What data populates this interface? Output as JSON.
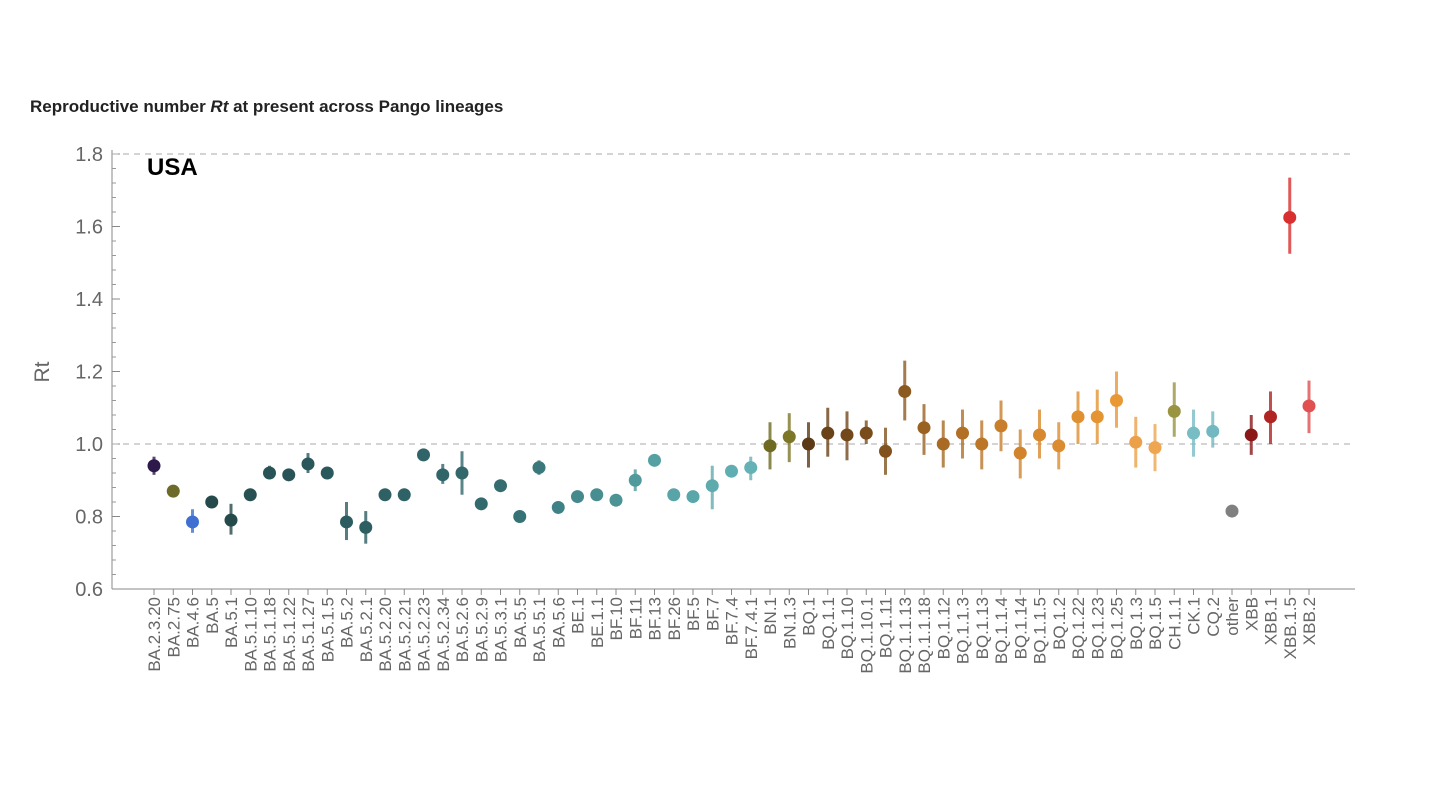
{
  "title_prefix": "Reproductive number ",
  "title_em": "Rt",
  "title_suffix": " at present across Pango lineages",
  "chart_data": {
    "type": "scatter",
    "annotation": "USA",
    "ylabel": "Rt",
    "xlabel": "",
    "ylim": [
      0.6,
      1.8
    ],
    "yticks": [
      "0.6",
      "0.8",
      "1.0",
      "1.2",
      "1.4",
      "1.6",
      "1.8"
    ],
    "reference_line": 1.0,
    "grid": false,
    "legend": "none",
    "points": [
      {
        "label": "BA.2.3.20",
        "rt": 0.94,
        "lo": 0.915,
        "hi": 0.965,
        "color": "#2d1a4a"
      },
      {
        "label": "BA.2.75",
        "rt": 0.87,
        "lo": 0.855,
        "hi": 0.885,
        "color": "#6e6a2a"
      },
      {
        "label": "BA.4.6",
        "rt": 0.785,
        "lo": 0.755,
        "hi": 0.82,
        "color": "#3f6fd0"
      },
      {
        "label": "BA.5",
        "rt": 0.84,
        "lo": 0.83,
        "hi": 0.85,
        "color": "#244a4c"
      },
      {
        "label": "BA.5.1",
        "rt": 0.79,
        "lo": 0.75,
        "hi": 0.835,
        "color": "#244a4c"
      },
      {
        "label": "BA.5.1.10",
        "rt": 0.86,
        "lo": 0.85,
        "hi": 0.87,
        "color": "#285154"
      },
      {
        "label": "BA.5.1.18",
        "rt": 0.92,
        "lo": 0.905,
        "hi": 0.94,
        "color": "#285458"
      },
      {
        "label": "BA.5.1.22",
        "rt": 0.915,
        "lo": 0.9,
        "hi": 0.93,
        "color": "#285458"
      },
      {
        "label": "BA.5.1.27",
        "rt": 0.945,
        "lo": 0.92,
        "hi": 0.975,
        "color": "#2a575b"
      },
      {
        "label": "BA.5.1.5",
        "rt": 0.92,
        "lo": 0.905,
        "hi": 0.935,
        "color": "#2a595d"
      },
      {
        "label": "BA.5.2",
        "rt": 0.785,
        "lo": 0.735,
        "hi": 0.84,
        "color": "#2c5c60"
      },
      {
        "label": "BA.5.2.1",
        "rt": 0.77,
        "lo": 0.725,
        "hi": 0.815,
        "color": "#2c5e62"
      },
      {
        "label": "BA.5.2.20",
        "rt": 0.86,
        "lo": 0.85,
        "hi": 0.87,
        "color": "#2e6064"
      },
      {
        "label": "BA.5.2.21",
        "rt": 0.86,
        "lo": 0.85,
        "hi": 0.87,
        "color": "#2e6266"
      },
      {
        "label": "BA.5.2.23",
        "rt": 0.97,
        "lo": 0.955,
        "hi": 0.985,
        "color": "#306468"
      },
      {
        "label": "BA.5.2.34",
        "rt": 0.915,
        "lo": 0.89,
        "hi": 0.945,
        "color": "#30666a"
      },
      {
        "label": "BA.5.2.6",
        "rt": 0.92,
        "lo": 0.86,
        "hi": 0.98,
        "color": "#32686c"
      },
      {
        "label": "BA.5.2.9",
        "rt": 0.835,
        "lo": 0.825,
        "hi": 0.845,
        "color": "#326a6e"
      },
      {
        "label": "BA.5.3.1",
        "rt": 0.885,
        "lo": 0.87,
        "hi": 0.9,
        "color": "#346c70"
      },
      {
        "label": "BA.5.5",
        "rt": 0.8,
        "lo": 0.79,
        "hi": 0.81,
        "color": "#367275"
      },
      {
        "label": "BA.5.5.1",
        "rt": 0.935,
        "lo": 0.915,
        "hi": 0.955,
        "color": "#3a787b"
      },
      {
        "label": "BA.5.6",
        "rt": 0.825,
        "lo": 0.815,
        "hi": 0.835,
        "color": "#3e8285"
      },
      {
        "label": "BE.1",
        "rt": 0.855,
        "lo": 0.84,
        "hi": 0.87,
        "color": "#44898c"
      },
      {
        "label": "BE.1.1",
        "rt": 0.86,
        "lo": 0.845,
        "hi": 0.875,
        "color": "#488e91"
      },
      {
        "label": "BF.10",
        "rt": 0.845,
        "lo": 0.83,
        "hi": 0.86,
        "color": "#4c9396"
      },
      {
        "label": "BF.11",
        "rt": 0.9,
        "lo": 0.87,
        "hi": 0.93,
        "color": "#509a9d"
      },
      {
        "label": "BF.13",
        "rt": 0.955,
        "lo": 0.94,
        "hi": 0.97,
        "color": "#54a0a3"
      },
      {
        "label": "BF.26",
        "rt": 0.86,
        "lo": 0.85,
        "hi": 0.87,
        "color": "#58a4a7"
      },
      {
        "label": "BF.5",
        "rt": 0.855,
        "lo": 0.84,
        "hi": 0.87,
        "color": "#5aa7aa"
      },
      {
        "label": "BF.7",
        "rt": 0.885,
        "lo": 0.82,
        "hi": 0.94,
        "color": "#5eabae"
      },
      {
        "label": "BF.7.4",
        "rt": 0.925,
        "lo": 0.91,
        "hi": 0.94,
        "color": "#60aeb1"
      },
      {
        "label": "BF.7.4.1",
        "rt": 0.935,
        "lo": 0.9,
        "hi": 0.965,
        "color": "#64b2b5"
      },
      {
        "label": "BN.1",
        "rt": 0.995,
        "lo": 0.93,
        "hi": 1.06,
        "color": "#6e6a22"
      },
      {
        "label": "BN.1.3",
        "rt": 1.02,
        "lo": 0.95,
        "hi": 1.085,
        "color": "#7d7528"
      },
      {
        "label": "BQ.1",
        "rt": 1.0,
        "lo": 0.935,
        "hi": 1.06,
        "color": "#5c3a16"
      },
      {
        "label": "BQ.1.1",
        "rt": 1.03,
        "lo": 0.965,
        "hi": 1.1,
        "color": "#6a4218"
      },
      {
        "label": "BQ.1.10",
        "rt": 1.025,
        "lo": 0.955,
        "hi": 1.09,
        "color": "#73481a"
      },
      {
        "label": "BQ.1.10.1",
        "rt": 1.03,
        "lo": 1.0,
        "hi": 1.065,
        "color": "#7a4c1c"
      },
      {
        "label": "BQ.1.11",
        "rt": 0.98,
        "lo": 0.915,
        "hi": 1.045,
        "color": "#82521e"
      },
      {
        "label": "BQ.1.1.13",
        "rt": 1.145,
        "lo": 1.065,
        "hi": 1.23,
        "color": "#8c5a20"
      },
      {
        "label": "BQ.1.1.18",
        "rt": 1.045,
        "lo": 0.97,
        "hi": 1.11,
        "color": "#9a6222"
      },
      {
        "label": "BQ.1.12",
        "rt": 1.0,
        "lo": 0.935,
        "hi": 1.065,
        "color": "#a86a24"
      },
      {
        "label": "BQ.1.1.3",
        "rt": 1.03,
        "lo": 0.96,
        "hi": 1.095,
        "color": "#b27026"
      },
      {
        "label": "BQ.1.13",
        "rt": 1.0,
        "lo": 0.93,
        "hi": 1.065,
        "color": "#bc7628"
      },
      {
        "label": "BQ.1.1.4",
        "rt": 1.05,
        "lo": 0.98,
        "hi": 1.12,
        "color": "#c87e2a"
      },
      {
        "label": "BQ.1.14",
        "rt": 0.975,
        "lo": 0.905,
        "hi": 1.04,
        "color": "#d2842c"
      },
      {
        "label": "BQ.1.1.5",
        "rt": 1.025,
        "lo": 0.96,
        "hi": 1.095,
        "color": "#d8882e"
      },
      {
        "label": "BQ.1.2",
        "rt": 0.995,
        "lo": 0.93,
        "hi": 1.06,
        "color": "#dc8c30"
      },
      {
        "label": "BQ.1.22",
        "rt": 1.075,
        "lo": 1.0,
        "hi": 1.145,
        "color": "#e09030"
      },
      {
        "label": "BQ.1.23",
        "rt": 1.075,
        "lo": 1.0,
        "hi": 1.15,
        "color": "#e49432"
      },
      {
        "label": "BQ.1.25",
        "rt": 1.12,
        "lo": 1.045,
        "hi": 1.2,
        "color": "#e89834"
      },
      {
        "label": "BQ.1.3",
        "rt": 1.005,
        "lo": 0.935,
        "hi": 1.075,
        "color": "#eca04a"
      },
      {
        "label": "BQ.1.5",
        "rt": 0.99,
        "lo": 0.925,
        "hi": 1.055,
        "color": "#eea650"
      },
      {
        "label": "CH.1.1",
        "rt": 1.09,
        "lo": 1.02,
        "hi": 1.17,
        "color": "#9a9440"
      },
      {
        "label": "CK.1",
        "rt": 1.03,
        "lo": 0.965,
        "hi": 1.095,
        "color": "#78bcc4"
      },
      {
        "label": "CQ.2",
        "rt": 1.035,
        "lo": 0.99,
        "hi": 1.09,
        "color": "#72b8c0"
      },
      {
        "label": "other",
        "rt": 0.815,
        "lo": 0.815,
        "hi": 0.815,
        "color": "#808080"
      },
      {
        "label": "XBB",
        "rt": 1.025,
        "lo": 0.97,
        "hi": 1.08,
        "color": "#8a1818"
      },
      {
        "label": "XBB.1",
        "rt": 1.075,
        "lo": 1.0,
        "hi": 1.145,
        "color": "#b02424"
      },
      {
        "label": "XBB.1.5",
        "rt": 1.625,
        "lo": 1.525,
        "hi": 1.735,
        "color": "#d83030"
      },
      {
        "label": "XBB.2",
        "rt": 1.105,
        "lo": 1.03,
        "hi": 1.175,
        "color": "#e05050"
      }
    ]
  }
}
